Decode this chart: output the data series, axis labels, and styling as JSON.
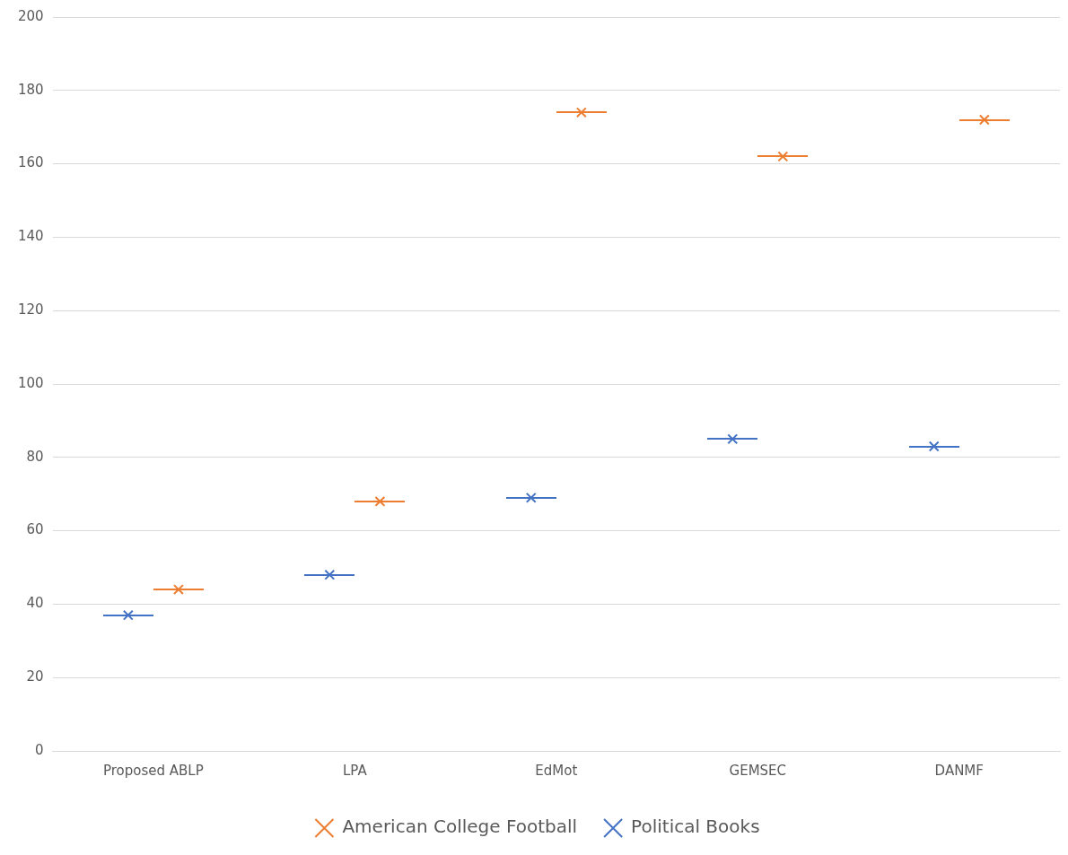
{
  "chart_data": {
    "type": "scatter",
    "categories": [
      "Proposed ABLP",
      "LPA",
      "EdMot",
      "GEMSEC",
      "DANMF"
    ],
    "series": [
      {
        "name": "American College Football",
        "color": "#ed7d31",
        "values": [
          44,
          68,
          174,
          162,
          172
        ]
      },
      {
        "name": "Political Books",
        "color": "#4472c4",
        "values": [
          37,
          48,
          69,
          85,
          83
        ]
      }
    ],
    "ylim": [
      0,
      200
    ],
    "yticks": [
      0,
      20,
      40,
      60,
      80,
      100,
      120,
      140,
      160,
      180,
      200
    ],
    "grid": "y",
    "legend": "bottom",
    "marker": "cross"
  }
}
